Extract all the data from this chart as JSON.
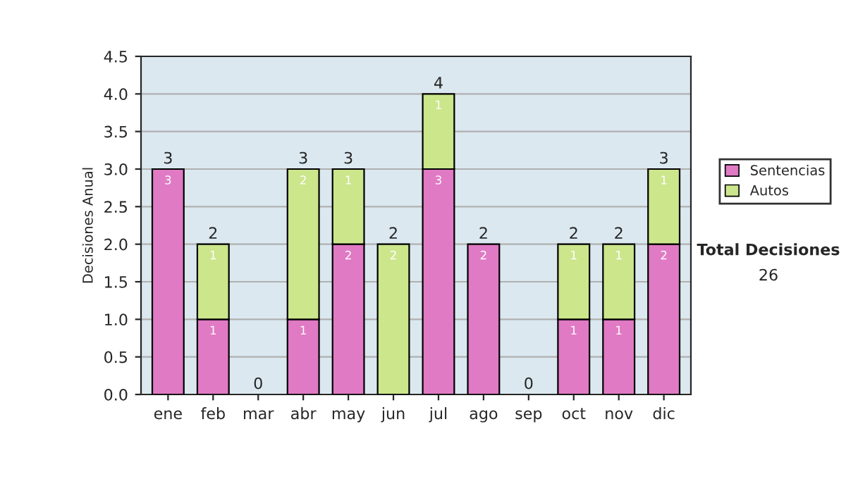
{
  "chart_data": {
    "type": "bar",
    "stacked": true,
    "ylabel": "Decisiones Anual",
    "categories": [
      "ene",
      "feb",
      "mar",
      "abr",
      "may",
      "jun",
      "jul",
      "ago",
      "sep",
      "oct",
      "nov",
      "dic"
    ],
    "series": [
      {
        "name": "Sentencias",
        "color": "#e07ac4",
        "values": [
          3,
          1,
          0,
          1,
          2,
          0,
          3,
          2,
          0,
          1,
          1,
          2
        ],
        "value_labels": [
          "3",
          "1",
          null,
          "1",
          "2",
          null,
          "3",
          "2",
          null,
          "1",
          "1",
          "2"
        ]
      },
      {
        "name": "Autos",
        "color": "#cce68c",
        "values": [
          0,
          1,
          0,
          2,
          1,
          2,
          1,
          0,
          0,
          1,
          1,
          1
        ],
        "value_labels": [
          null,
          "1",
          null,
          "2",
          "1",
          "2",
          "1",
          null,
          null,
          "1",
          "1",
          "1"
        ]
      }
    ],
    "totals": [
      "3",
      "2",
      "0",
      "3",
      "3",
      "2",
      "4",
      "2",
      "0",
      "2",
      "2",
      "3"
    ],
    "ylim": [
      0,
      4.5
    ],
    "yticks": [
      {
        "value": 0,
        "label": "0.0"
      },
      {
        "value": 0.5,
        "label": "0.5"
      },
      {
        "value": 1,
        "label": "1.0"
      },
      {
        "value": 1.5,
        "label": "1.5"
      },
      {
        "value": 2,
        "label": "2.0"
      },
      {
        "value": 2.5,
        "label": "2.5"
      },
      {
        "value": 3,
        "label": "3.0"
      },
      {
        "value": 3.5,
        "label": "3.5"
      },
      {
        "value": 4,
        "label": "4.0"
      },
      {
        "value": 4.5,
        "label": "4.5"
      }
    ],
    "grid": "y",
    "legend": "right",
    "annotations": [
      "Total Decisiones",
      "26"
    ]
  }
}
